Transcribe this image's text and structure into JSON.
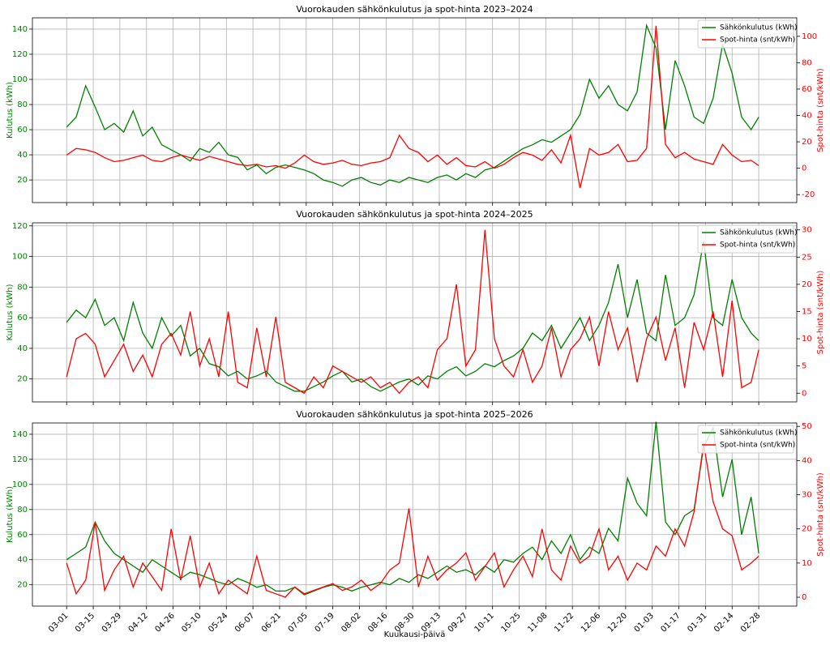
{
  "chart_data": [
    {
      "type": "line",
      "title": "Vuorokauden sähkönkulutus ja spot-hinta 2023–2024",
      "ylabel": "Kulutus (kWh)",
      "y2label": "Spot-hinta (snt/kWh)",
      "x": [
        0,
        5,
        10,
        15,
        20,
        25,
        30,
        35,
        40,
        45,
        50,
        55,
        60,
        65,
        70,
        75,
        80,
        85,
        90,
        95,
        100,
        105,
        110,
        115,
        120,
        125,
        130,
        135,
        140,
        145,
        150,
        155,
        160,
        165,
        170,
        175,
        180,
        185,
        190,
        195,
        200,
        205,
        210,
        215,
        220,
        225,
        230,
        235,
        240,
        245,
        250,
        255,
        260,
        265,
        270,
        275,
        280,
        285,
        290,
        295,
        300,
        305,
        310,
        315,
        320,
        325,
        330,
        335,
        340,
        345,
        350,
        355,
        360,
        364
      ],
      "xlim": [
        -18,
        384
      ],
      "xticks": [
        0,
        14,
        28,
        42,
        56,
        70,
        84,
        98,
        112,
        126,
        140,
        154,
        168,
        182,
        196,
        210,
        224,
        238,
        252,
        266,
        280,
        294,
        308,
        322,
        336,
        350,
        364
      ],
      "ylim": [
        2,
        149
      ],
      "yticks": [
        20,
        40,
        60,
        80,
        100,
        120,
        140
      ],
      "y2lim": [
        -26,
        114
      ],
      "y2ticks": [
        -20,
        0,
        20,
        40,
        60,
        80,
        100
      ],
      "grid": true,
      "legend": "upper right",
      "series": [
        {
          "name": "Sähkönkulutus (kWh)",
          "color": "#008000",
          "values": [
            62,
            70,
            95,
            78,
            60,
            65,
            58,
            75,
            55,
            62,
            48,
            44,
            40,
            35,
            45,
            42,
            50,
            40,
            38,
            28,
            32,
            25,
            30,
            32,
            30,
            28,
            25,
            20,
            18,
            15,
            20,
            22,
            18,
            16,
            20,
            18,
            22,
            20,
            18,
            22,
            24,
            20,
            25,
            22,
            28,
            30,
            35,
            40,
            45,
            48,
            52,
            50,
            55,
            60,
            72,
            100,
            85,
            95,
            80,
            75,
            90,
            143,
            125,
            60,
            115,
            95,
            70,
            65,
            85,
            128,
            105,
            70,
            60,
            70
          ]
        },
        {
          "name": "Spot-hinta (snt/kWh)",
          "color": "#ff0000",
          "axis": "y2",
          "values": [
            10,
            15,
            14,
            12,
            8,
            5,
            6,
            8,
            10,
            6,
            5,
            8,
            10,
            8,
            6,
            9,
            7,
            5,
            3,
            2,
            3,
            1,
            2,
            0,
            4,
            10,
            5,
            3,
            4,
            6,
            3,
            2,
            4,
            5,
            8,
            25,
            15,
            12,
            5,
            10,
            3,
            8,
            2,
            1,
            5,
            0,
            3,
            8,
            12,
            10,
            6,
            14,
            4,
            25,
            -15,
            15,
            10,
            12,
            18,
            5,
            6,
            15,
            108,
            18,
            8,
            12,
            7,
            5,
            3,
            18,
            10,
            5,
            6,
            2
          ]
        }
      ]
    },
    {
      "type": "line",
      "title": "Vuorokauden sähkönkulutus ja spot-hinta 2024–2025",
      "ylabel": "Kulutus (kWh)",
      "y2label": "Spot-hinta (snt/kWh)",
      "x": [
        0,
        5,
        10,
        15,
        20,
        25,
        30,
        35,
        40,
        45,
        50,
        55,
        60,
        65,
        70,
        75,
        80,
        85,
        90,
        95,
        100,
        105,
        110,
        115,
        120,
        125,
        130,
        135,
        140,
        145,
        150,
        155,
        160,
        165,
        170,
        175,
        180,
        185,
        190,
        195,
        200,
        205,
        210,
        215,
        220,
        225,
        230,
        235,
        240,
        245,
        250,
        255,
        260,
        265,
        270,
        275,
        280,
        285,
        290,
        295,
        300,
        305,
        310,
        315,
        320,
        325,
        330,
        335,
        340,
        345,
        350,
        355,
        360,
        364
      ],
      "xlim": [
        -18,
        384
      ],
      "xticks": [
        0,
        14,
        28,
        42,
        56,
        70,
        84,
        98,
        112,
        126,
        140,
        154,
        168,
        182,
        196,
        210,
        224,
        238,
        252,
        266,
        280,
        294,
        308,
        322,
        336,
        350,
        364
      ],
      "ylim": [
        5,
        122
      ],
      "yticks": [
        20,
        40,
        60,
        80,
        100,
        120
      ],
      "y2lim": [
        -1.6,
        31.3
      ],
      "y2ticks": [
        0,
        5,
        10,
        15,
        20,
        25,
        30
      ],
      "grid": true,
      "legend": "upper right",
      "series": [
        {
          "name": "Sähkönkulutus (kWh)",
          "color": "#008000",
          "values": [
            57,
            65,
            60,
            72,
            55,
            60,
            45,
            70,
            50,
            40,
            60,
            48,
            55,
            35,
            40,
            30,
            28,
            22,
            25,
            20,
            22,
            25,
            18,
            15,
            12,
            12,
            15,
            18,
            22,
            25,
            18,
            20,
            15,
            12,
            15,
            18,
            20,
            16,
            22,
            20,
            25,
            28,
            22,
            25,
            30,
            28,
            32,
            35,
            40,
            50,
            45,
            55,
            40,
            50,
            60,
            45,
            55,
            70,
            95,
            60,
            85,
            50,
            45,
            88,
            55,
            60,
            75,
            110,
            60,
            55,
            85,
            60,
            50,
            45
          ]
        },
        {
          "name": "Spot-hinta (snt/kWh)",
          "color": "#ff0000",
          "axis": "y2",
          "values": [
            3,
            10,
            11,
            9,
            3,
            6,
            9,
            4,
            7,
            3,
            9,
            11,
            7,
            15,
            5,
            10,
            3,
            15,
            2,
            1,
            12,
            3,
            14,
            2,
            1,
            0,
            3,
            1,
            5,
            4,
            3,
            2,
            3,
            1,
            2,
            0,
            2,
            3,
            1,
            8,
            10,
            20,
            5,
            8,
            30,
            10,
            5,
            3,
            8,
            2,
            5,
            12,
            3,
            8,
            10,
            14,
            5,
            15,
            8,
            12,
            2,
            10,
            14,
            6,
            12,
            1,
            13,
            8,
            15,
            3,
            17,
            1,
            2,
            8
          ]
        }
      ]
    },
    {
      "type": "line",
      "title": "Vuorokauden sähkönkulutus ja spot-hinta 2025–2026",
      "ylabel": "Kulutus (kWh)",
      "y2label": "Spot-hinta (snt/kWh)",
      "xlabel": "Kuukausi-päivä",
      "x": [
        0,
        5,
        10,
        15,
        20,
        25,
        30,
        35,
        40,
        45,
        50,
        55,
        60,
        65,
        70,
        75,
        80,
        85,
        90,
        95,
        100,
        105,
        110,
        115,
        120,
        125,
        130,
        135,
        140,
        145,
        150,
        155,
        160,
        165,
        170,
        175,
        180,
        185,
        190,
        195,
        200,
        205,
        210,
        215,
        220,
        225,
        230,
        235,
        240,
        245,
        250,
        255,
        260,
        265,
        270,
        275,
        280,
        285,
        290,
        295,
        300,
        305,
        310,
        315,
        320,
        325,
        330,
        335,
        340,
        345,
        350,
        355,
        360,
        364
      ],
      "xlim": [
        -18,
        384
      ],
      "xticks": [
        {
          "value": 0,
          "label": "03-01"
        },
        {
          "value": 14,
          "label": "03-15"
        },
        {
          "value": 28,
          "label": "03-29"
        },
        {
          "value": 42,
          "label": "04-12"
        },
        {
          "value": 56,
          "label": "04-26"
        },
        {
          "value": 70,
          "label": "05-10"
        },
        {
          "value": 84,
          "label": "05-24"
        },
        {
          "value": 98,
          "label": "06-07"
        },
        {
          "value": 112,
          "label": "06-21"
        },
        {
          "value": 126,
          "label": "07-05"
        },
        {
          "value": 140,
          "label": "07-19"
        },
        {
          "value": 154,
          "label": "08-02"
        },
        {
          "value": 168,
          "label": "08-16"
        },
        {
          "value": 182,
          "label": "08-30"
        },
        {
          "value": 196,
          "label": "09-13"
        },
        {
          "value": 210,
          "label": "09-27"
        },
        {
          "value": 224,
          "label": "10-11"
        },
        {
          "value": 238,
          "label": "10-25"
        },
        {
          "value": 252,
          "label": "11-08"
        },
        {
          "value": 266,
          "label": "11-22"
        },
        {
          "value": 280,
          "label": "12-06"
        },
        {
          "value": 294,
          "label": "12-20"
        },
        {
          "value": 308,
          "label": "01-03"
        },
        {
          "value": 322,
          "label": "01-17"
        },
        {
          "value": 336,
          "label": "01-31"
        },
        {
          "value": 350,
          "label": "02-14"
        },
        {
          "value": 364,
          "label": "02-28"
        }
      ],
      "ylim": [
        3,
        149
      ],
      "yticks": [
        20,
        40,
        60,
        80,
        100,
        120,
        140
      ],
      "y2lim": [
        -2.6,
        51
      ],
      "y2ticks": [
        0,
        10,
        20,
        30,
        40,
        50
      ],
      "grid": true,
      "legend": "upper right",
      "series": [
        {
          "name": "Sähkönkulutus (kWh)",
          "color": "#008000",
          "values": [
            40,
            45,
            50,
            70,
            55,
            45,
            40,
            35,
            30,
            40,
            35,
            30,
            25,
            30,
            28,
            25,
            22,
            20,
            25,
            22,
            18,
            20,
            15,
            15,
            18,
            12,
            15,
            18,
            20,
            18,
            15,
            18,
            20,
            22,
            20,
            25,
            22,
            28,
            25,
            30,
            35,
            30,
            32,
            28,
            35,
            30,
            40,
            38,
            45,
            50,
            40,
            55,
            45,
            60,
            40,
            50,
            45,
            65,
            55,
            105,
            85,
            75,
            150,
            70,
            60,
            75,
            80,
            130,
            145,
            90,
            120,
            60,
            90,
            45
          ]
        },
        {
          "name": "Spot-hinta (snt/kWh)",
          "color": "#ff0000",
          "axis": "y2",
          "values": [
            10,
            1,
            5,
            22,
            2,
            8,
            12,
            3,
            10,
            6,
            2,
            20,
            5,
            18,
            3,
            10,
            1,
            5,
            3,
            1,
            12,
            2,
            1,
            0,
            3,
            1,
            2,
            3,
            4,
            2,
            3,
            5,
            2,
            4,
            8,
            10,
            26,
            3,
            12,
            5,
            8,
            10,
            13,
            5,
            9,
            13,
            3,
            8,
            12,
            6,
            20,
            8,
            5,
            15,
            10,
            12,
            20,
            8,
            12,
            5,
            10,
            8,
            15,
            12,
            20,
            15,
            25,
            45,
            28,
            20,
            18,
            8,
            10,
            12
          ]
        }
      ]
    }
  ]
}
